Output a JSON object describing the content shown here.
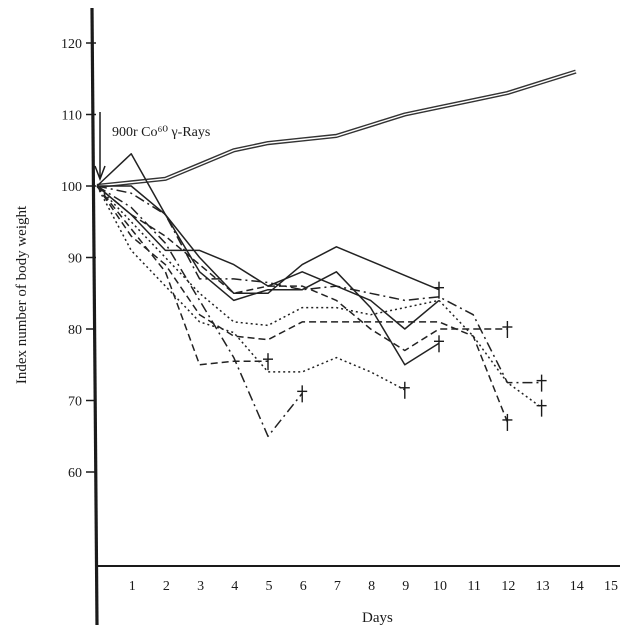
{
  "chart_data": {
    "type": "line",
    "title": "",
    "xlabel": "Days",
    "ylabel": "Index number of body weight",
    "xlim": [
      0,
      15
    ],
    "ylim": [
      50,
      125
    ],
    "x_ticks": [
      "1",
      "2",
      "3",
      "4",
      "5",
      "6",
      "7",
      "8",
      "9",
      "10",
      "11",
      "12",
      "13",
      "14",
      "15"
    ],
    "y_ticks": [
      "60",
      "70",
      "80",
      "90",
      "100",
      "110",
      "120"
    ],
    "grid": false,
    "legend": "none",
    "annotation": {
      "text": "900r Co⁶⁰ γ-Rays",
      "x": 0
    },
    "death_marker": "†",
    "series": [
      {
        "style": "double",
        "color": "#333333",
        "points": [
          [
            0,
            100
          ],
          [
            1,
            100.5
          ],
          [
            2,
            101
          ],
          [
            3,
            103
          ],
          [
            4,
            105
          ],
          [
            5,
            106
          ],
          [
            6,
            106.5
          ],
          [
            7,
            107
          ],
          [
            8,
            108.5
          ],
          [
            9,
            110
          ],
          [
            10,
            111
          ],
          [
            11,
            112
          ],
          [
            12,
            113
          ],
          [
            13,
            114.5
          ],
          [
            14,
            116
          ]
        ],
        "died": false
      },
      {
        "style": "solid",
        "color": "#222222",
        "points": [
          [
            0,
            100
          ],
          [
            1,
            104.5
          ],
          [
            2,
            96
          ],
          [
            3,
            88
          ],
          [
            4,
            84
          ],
          [
            5,
            85.5
          ],
          [
            6,
            85.5
          ],
          [
            7,
            88
          ],
          [
            8,
            83
          ],
          [
            9,
            75
          ],
          [
            10,
            78
          ]
        ],
        "died": true
      },
      {
        "style": "solid",
        "color": "#222222",
        "points": [
          [
            0,
            100
          ],
          [
            1,
            100
          ],
          [
            2,
            96
          ],
          [
            3,
            90
          ],
          [
            4,
            85
          ],
          [
            5,
            85
          ],
          [
            6,
            89
          ],
          [
            7,
            91.5
          ],
          [
            8,
            89.5
          ],
          [
            9,
            87.5
          ],
          [
            10,
            85.5
          ]
        ],
        "died": true
      },
      {
        "style": "solid",
        "color": "#222222",
        "points": [
          [
            0,
            100
          ],
          [
            1,
            96
          ],
          [
            2,
            91
          ],
          [
            3,
            91
          ],
          [
            4,
            89
          ],
          [
            5,
            86
          ],
          [
            6,
            88
          ],
          [
            7,
            86
          ],
          [
            8,
            84
          ],
          [
            9,
            80
          ],
          [
            10,
            84
          ]
        ],
        "died": false
      },
      {
        "style": "dashdot",
        "color": "#222222",
        "points": [
          [
            0,
            100
          ],
          [
            1,
            97
          ],
          [
            2,
            92
          ],
          [
            3,
            84
          ],
          [
            4,
            76
          ],
          [
            5,
            65
          ],
          [
            6,
            71
          ]
        ],
        "died": true
      },
      {
        "style": "dashed",
        "color": "#222222",
        "points": [
          [
            0,
            100
          ],
          [
            1,
            94
          ],
          [
            2,
            88
          ],
          [
            3,
            75
          ],
          [
            4,
            75.5
          ],
          [
            5,
            75.5
          ]
        ],
        "died": true
      },
      {
        "style": "dashdot",
        "color": "#222222",
        "points": [
          [
            0,
            100
          ],
          [
            1,
            99
          ],
          [
            2,
            96
          ],
          [
            3,
            87
          ],
          [
            4,
            87
          ],
          [
            5,
            86.5
          ],
          [
            6,
            85.5
          ],
          [
            7,
            86
          ],
          [
            8,
            85
          ],
          [
            9,
            84
          ],
          [
            10,
            84.5
          ],
          [
            11,
            82
          ],
          [
            12,
            72.5
          ],
          [
            13,
            72.5
          ]
        ],
        "died": true
      },
      {
        "style": "dotted",
        "color": "#222222",
        "points": [
          [
            0,
            100
          ],
          [
            1,
            95
          ],
          [
            2,
            90
          ],
          [
            3,
            85
          ],
          [
            4,
            81
          ],
          [
            5,
            80.5
          ],
          [
            6,
            83
          ],
          [
            7,
            83
          ],
          [
            8,
            82
          ],
          [
            9,
            83
          ],
          [
            10,
            84
          ],
          [
            11,
            79
          ],
          [
            12,
            72.5
          ],
          [
            13,
            69
          ]
        ],
        "died": true
      },
      {
        "style": "dashed",
        "color": "#222222",
        "points": [
          [
            0,
            100
          ],
          [
            1,
            93
          ],
          [
            2,
            89
          ],
          [
            3,
            82
          ],
          [
            4,
            79
          ],
          [
            5,
            78.5
          ],
          [
            6,
            81
          ],
          [
            7,
            81
          ],
          [
            8,
            81
          ],
          [
            9,
            81
          ],
          [
            10,
            81
          ],
          [
            11,
            79
          ],
          [
            12,
            67
          ]
        ],
        "died": true
      },
      {
        "style": "dotted",
        "color": "#222222",
        "points": [
          [
            0,
            100
          ],
          [
            1,
            91
          ],
          [
            2,
            86
          ],
          [
            3,
            81
          ],
          [
            4,
            79.5
          ],
          [
            5,
            74
          ],
          [
            6,
            74
          ],
          [
            7,
            76
          ],
          [
            8,
            74
          ],
          [
            9,
            71.5
          ]
        ],
        "died": true
      },
      {
        "style": "dashed",
        "color": "#222222",
        "points": [
          [
            0,
            100
          ],
          [
            1,
            96
          ],
          [
            2,
            93
          ],
          [
            3,
            89
          ],
          [
            4,
            85
          ],
          [
            5,
            86
          ],
          [
            6,
            86
          ],
          [
            7,
            84
          ],
          [
            8,
            80
          ],
          [
            9,
            77
          ],
          [
            10,
            80
          ],
          [
            11,
            80
          ],
          [
            12,
            80
          ]
        ],
        "died": true
      }
    ]
  }
}
